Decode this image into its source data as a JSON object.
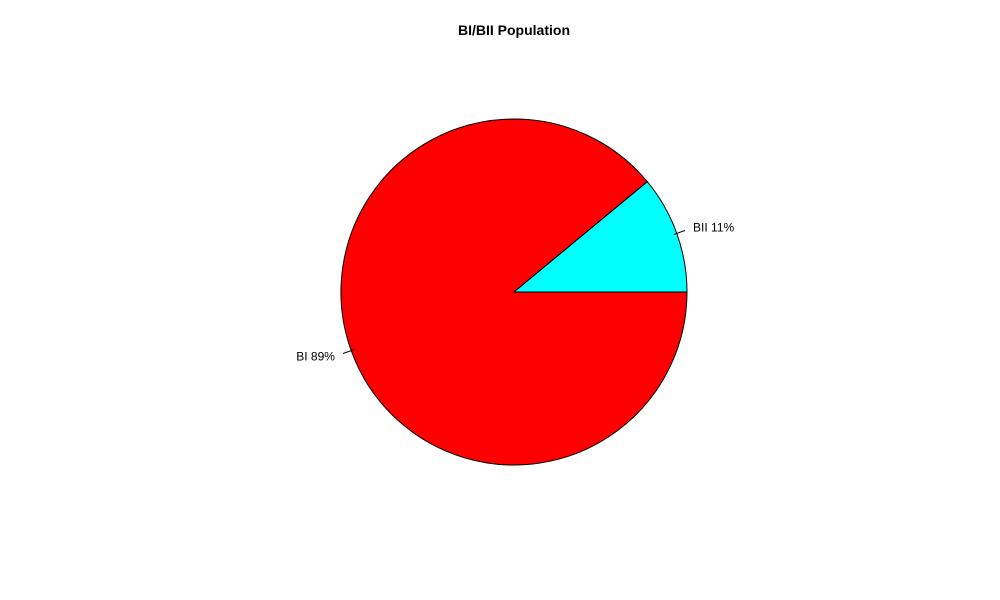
{
  "chart_data": {
    "type": "pie",
    "title": "BI/BII Population",
    "slices": [
      {
        "label": "BI 89%",
        "name": "BI",
        "value": 89,
        "color": "#ff0000"
      },
      {
        "label": "BII 11%",
        "name": "BII",
        "value": 11,
        "color": "#00ffff"
      }
    ],
    "start_angle_deg": 0,
    "direction": "clockwise",
    "legend": "none"
  }
}
